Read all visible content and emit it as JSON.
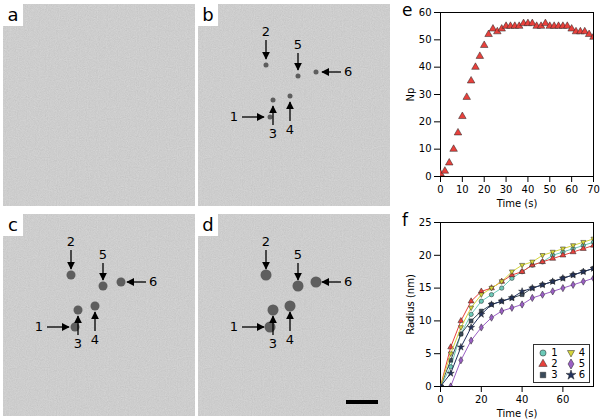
{
  "images": [
    {
      "label": "a",
      "markers": []
    },
    {
      "label": "b",
      "markers": [
        "1",
        "2",
        "3",
        "4",
        "5",
        "6"
      ]
    },
    {
      "label": "c",
      "markers": [
        "1",
        "2",
        "3",
        "4",
        "5",
        "6"
      ]
    },
    {
      "label": "d",
      "markers": [
        "1",
        "2",
        "3",
        "4",
        "5",
        "6"
      ]
    }
  ],
  "chart_data": [
    {
      "type": "scatter",
      "title": "e",
      "xlabel": "Time (s)",
      "ylabel": "Np",
      "x": [
        0,
        2,
        4,
        6,
        8,
        10,
        12,
        14,
        16,
        18,
        20,
        22,
        24,
        26,
        28,
        30,
        32,
        34,
        36,
        38,
        40,
        42,
        44,
        46,
        48,
        50,
        52,
        54,
        56,
        58,
        60,
        62,
        64,
        66,
        68,
        70
      ],
      "values": [
        1,
        2,
        5,
        10,
        16,
        22,
        29,
        35,
        40,
        44,
        48,
        52,
        54,
        53,
        54,
        55,
        55,
        55,
        55,
        56,
        56,
        56,
        55,
        55,
        56,
        55,
        55,
        55,
        55,
        55,
        54,
        53,
        53,
        53,
        52,
        51
      ],
      "color": "#e8413c",
      "marker": "triangle",
      "xlim": [
        0,
        70
      ],
      "xticks": [
        0,
        10,
        20,
        30,
        40,
        50,
        60,
        70
      ],
      "ylim": [
        0,
        60
      ],
      "yticks": [
        0,
        10,
        20,
        30,
        40,
        50,
        60
      ]
    },
    {
      "type": "line",
      "title": "f",
      "xlabel": "Time (s)",
      "ylabel": "Radius (nm)",
      "x": [
        0,
        5,
        10,
        15,
        20,
        25,
        30,
        35,
        40,
        45,
        50,
        55,
        60,
        65,
        70,
        75
      ],
      "series": [
        {
          "name": "1",
          "color": "#6cc9b8",
          "marker": "circle",
          "values": [
            0,
            3,
            8,
            11,
            13,
            14,
            15,
            16.5,
            17.5,
            18.5,
            19,
            20,
            20.5,
            21,
            21.5,
            22
          ]
        },
        {
          "name": "2",
          "color": "#e8413c",
          "marker": "triangle",
          "values": [
            0,
            6,
            10,
            13,
            14.5,
            15,
            16,
            17,
            17.5,
            18.5,
            19,
            19.5,
            20,
            20.5,
            21,
            21.5
          ]
        },
        {
          "name": "3",
          "color": "#3a4a5a",
          "marker": "square",
          "values": [
            0,
            4,
            8,
            10,
            11.5,
            12.5,
            13,
            13.5,
            14,
            15,
            15.5,
            16,
            16.5,
            17,
            17.5,
            18
          ]
        },
        {
          "name": "4",
          "color": "#d6d63c",
          "marker": "triangle-down",
          "values": [
            0,
            5,
            9,
            12,
            14,
            15,
            16,
            17.5,
            18.5,
            19,
            20,
            20.5,
            21,
            21.5,
            22,
            22.5
          ]
        },
        {
          "name": "5",
          "color": "#9a5fc4",
          "marker": "diamond",
          "values": [
            0,
            0,
            4,
            7,
            9,
            10.5,
            11.5,
            12,
            12.5,
            13.5,
            14,
            14.5,
            15,
            15.5,
            16,
            16.5
          ]
        },
        {
          "name": "6",
          "color": "#23335e",
          "marker": "star",
          "values": [
            0,
            2,
            6,
            9,
            11,
            12.5,
            13,
            13.5,
            14.5,
            15,
            15.5,
            16,
            16.5,
            17,
            17.5,
            18
          ]
        }
      ],
      "legend": "lower right",
      "xlim": [
        0,
        75
      ],
      "xticks": [
        0,
        20,
        40,
        60
      ],
      "ylim": [
        0,
        25
      ],
      "yticks": [
        0,
        5,
        10,
        15,
        20,
        25
      ]
    }
  ]
}
